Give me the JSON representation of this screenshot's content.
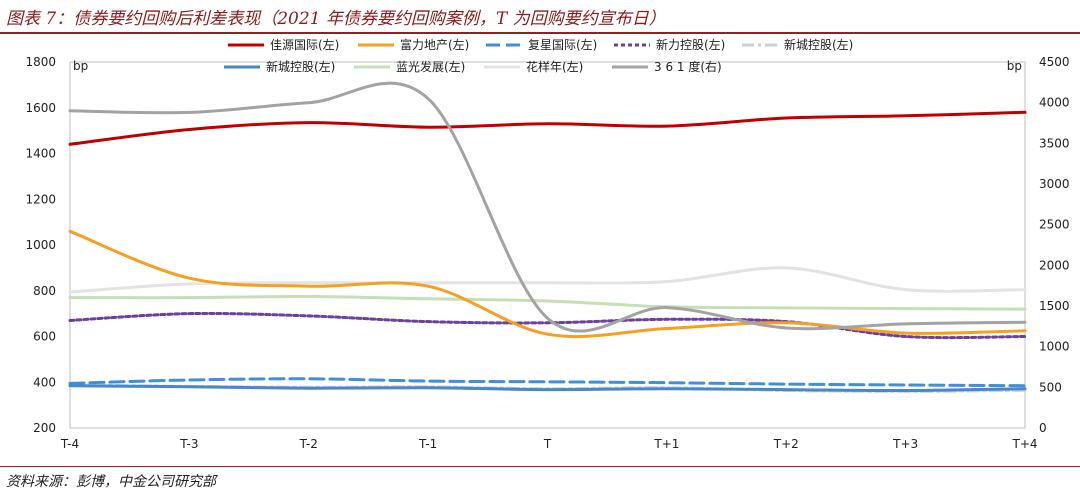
{
  "title": "图表 7：债券要约回购后利差表现（2021 年债券要约回购案例，T 为回购要约宣布日）",
  "source": "资料来源：彭博，中金公司研究部",
  "chart_data": {
    "type": "line",
    "categories": [
      "T-4",
      "T-3",
      "T-2",
      "T-1",
      "T",
      "T+1",
      "T+2",
      "T+3",
      "T+4"
    ],
    "y_left": {
      "unit": "bp",
      "range": [
        200,
        1800
      ],
      "ticks": [
        200,
        400,
        600,
        800,
        1000,
        1200,
        1400,
        1600,
        1800
      ]
    },
    "y_right": {
      "unit": "bp",
      "range": [
        0,
        4500
      ],
      "ticks": [
        0,
        500,
        1000,
        1500,
        2000,
        2500,
        3000,
        3500,
        4000,
        4500
      ]
    },
    "series": [
      {
        "name": "佳源国际(左)",
        "axis": "left",
        "color": "#c00000",
        "dash": "solid",
        "width": 3,
        "values": [
          1440,
          1505,
          1535,
          1515,
          1530,
          1520,
          1555,
          1565,
          1580
        ]
      },
      {
        "name": "富力地产(左)",
        "axis": "left",
        "color": "#f5a020",
        "dash": "solid",
        "width": 3,
        "values": [
          1060,
          855,
          820,
          820,
          610,
          635,
          660,
          615,
          625
        ]
      },
      {
        "name": "复星国际(左)",
        "axis": "left",
        "color": "#3f8fdc",
        "dash": "longdash",
        "width": 3,
        "values": [
          395,
          410,
          415,
          405,
          402,
          398,
          392,
          388,
          385
        ]
      },
      {
        "name": "新力控股(左)",
        "axis": "left",
        "color": "#6a3fa0",
        "dash": "dot",
        "width": 3,
        "values": [
          670,
          700,
          690,
          665,
          660,
          675,
          665,
          600,
          600
        ]
      },
      {
        "name": "新城控股(左)",
        "axis": "left",
        "color": "#cfcfd6",
        "dash": "dashdot",
        "width": 3,
        "values": [
          388,
          382,
          378,
          380,
          372,
          376,
          364,
          360,
          365
        ]
      },
      {
        "name": "新城控股(左)",
        "axis": "left",
        "color": "#4a87c8",
        "dash": "solid",
        "width": 3,
        "values": [
          385,
          380,
          374,
          376,
          368,
          372,
          368,
          364,
          372
        ]
      },
      {
        "name": "蓝光发展(左)",
        "axis": "left",
        "color": "#c6dfb4",
        "dash": "solid",
        "width": 3,
        "values": [
          770,
          770,
          775,
          765,
          755,
          730,
          725,
          722,
          720
        ]
      },
      {
        "name": "花样年(左)",
        "axis": "left",
        "color": "#e3e3e3",
        "dash": "solid",
        "width": 3,
        "values": [
          795,
          830,
          835,
          835,
          835,
          840,
          900,
          805,
          805
        ]
      },
      {
        "name": "3 6 1 度(右)",
        "axis": "right",
        "color": "#a3a3a3",
        "dash": "solid",
        "width": 3,
        "values": [
          3900,
          3880,
          4000,
          4050,
          1350,
          1480,
          1230,
          1280,
          1300
        ]
      }
    ]
  }
}
